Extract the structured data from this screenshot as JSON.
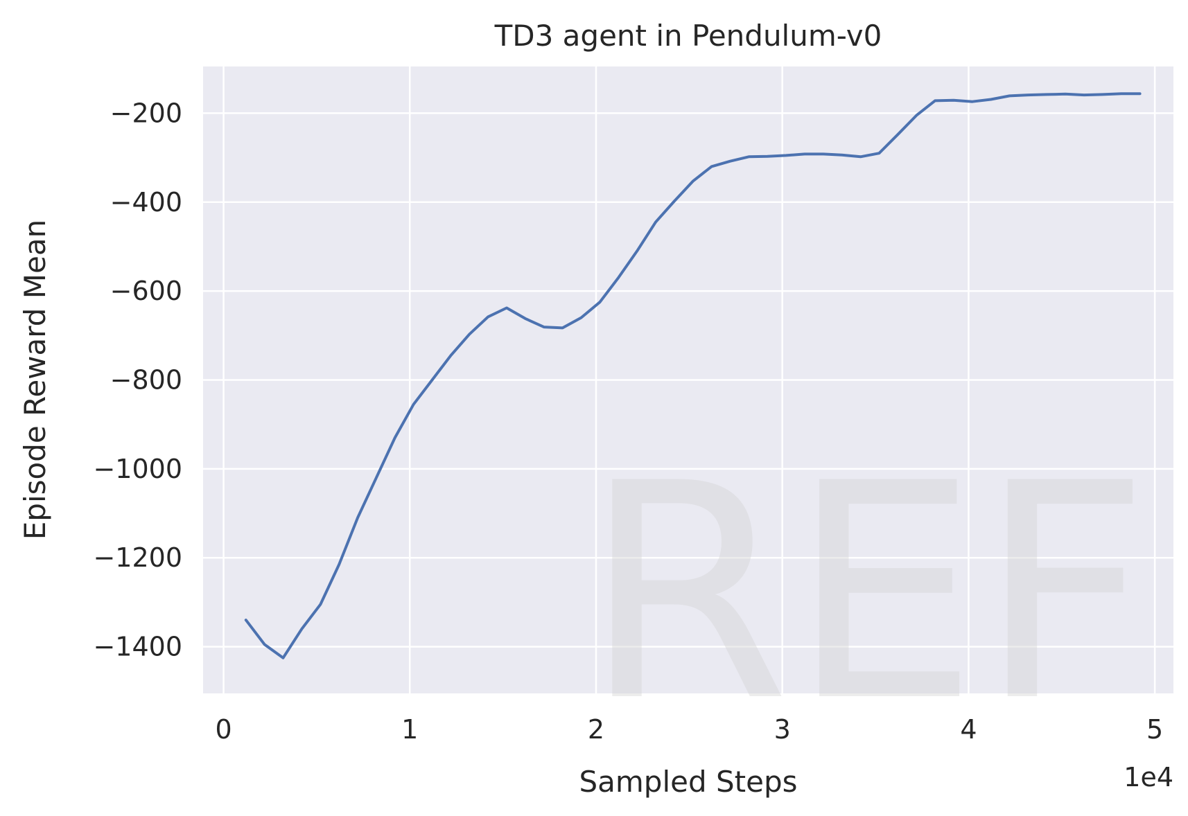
{
  "chart_data": {
    "type": "line",
    "title": "TD3 agent in Pendulum-v0",
    "xlabel": "Sampled Steps",
    "ylabel": "Episode Reward Mean",
    "x_offset_label": "1e4",
    "xlim": [
      -1100,
      51000
    ],
    "ylim": [
      -1505,
      -95
    ],
    "xticks": [
      0,
      10000,
      20000,
      30000,
      40000,
      50000
    ],
    "xtick_labels": [
      "0",
      "1",
      "2",
      "3",
      "4",
      "5"
    ],
    "yticks": [
      -1400,
      -1200,
      -1000,
      -800,
      -600,
      -400,
      -200
    ],
    "ytick_labels": [
      "−1400",
      "−1200",
      "−1000",
      "−800",
      "−600",
      "−400",
      "−200"
    ],
    "grid": true,
    "background": "#eaeaf2",
    "grid_color": "#ffffff",
    "watermark": "REF",
    "series": [
      {
        "color": "#4c72b0",
        "x": [
          1200,
          2200,
          3200,
          4200,
          5200,
          6200,
          7200,
          8200,
          9200,
          10200,
          11200,
          12200,
          13200,
          14200,
          15200,
          16200,
          17200,
          18200,
          19200,
          20200,
          21200,
          22200,
          23200,
          24200,
          25200,
          26200,
          27200,
          28200,
          29200,
          30200,
          31200,
          32200,
          33200,
          34200,
          35200,
          36200,
          37200,
          38200,
          39200,
          40200,
          41200,
          42200,
          43200,
          44200,
          45200,
          46200,
          47200,
          48200,
          49200
        ],
        "y": [
          -1340,
          -1395,
          -1425,
          -1360,
          -1305,
          -1215,
          -1110,
          -1020,
          -930,
          -855,
          -800,
          -745,
          -697,
          -658,
          -638,
          -662,
          -681,
          -683,
          -660,
          -625,
          -570,
          -510,
          -445,
          -398,
          -353,
          -320,
          -308,
          -298,
          -297,
          -295,
          -292,
          -292,
          -294,
          -298,
          -290,
          -248,
          -205,
          -172,
          -171,
          -174,
          -169,
          -161,
          -159,
          -158,
          -157,
          -159,
          -158,
          -156,
          -156
        ]
      }
    ]
  }
}
